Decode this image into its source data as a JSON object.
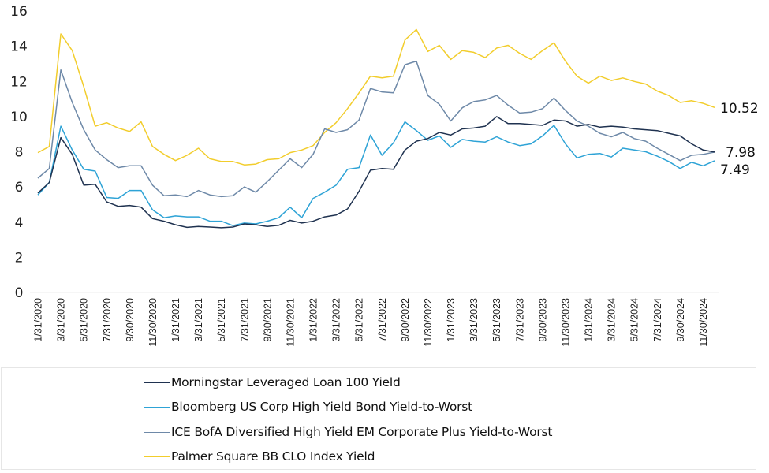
{
  "chart_data": {
    "type": "line",
    "title": "",
    "xlabel": "",
    "ylabel": "",
    "ylim": [
      0,
      16
    ],
    "yticks": [
      0,
      2,
      4,
      6,
      8,
      10,
      12,
      14,
      16
    ],
    "grid": false,
    "legend_position": "bottom",
    "x": [
      "1/31/2020",
      "2/29/2020",
      "3/31/2020",
      "4/30/2020",
      "5/31/2020",
      "6/30/2020",
      "7/31/2020",
      "8/31/2020",
      "9/30/2020",
      "10/31/2020",
      "11/30/2020",
      "12/31/2020",
      "1/31/2021",
      "2/28/2021",
      "3/31/2021",
      "4/30/2021",
      "5/31/2021",
      "6/30/2021",
      "7/31/2021",
      "8/31/2021",
      "9/30/2021",
      "10/31/2021",
      "11/30/2021",
      "12/31/2021",
      "1/31/2022",
      "2/28/2022",
      "3/31/2022",
      "4/30/2022",
      "5/31/2022",
      "6/30/2022",
      "7/31/2022",
      "8/31/2022",
      "9/30/2022",
      "10/31/2022",
      "11/30/2022",
      "12/31/2022",
      "1/31/2023",
      "2/28/2023",
      "3/31/2023",
      "4/30/2023",
      "5/31/2023",
      "6/30/2023",
      "7/31/2023",
      "8/31/2023",
      "9/30/2023",
      "10/31/2023",
      "11/30/2023",
      "12/31/2023",
      "1/31/2024",
      "2/29/2024",
      "3/31/2024",
      "4/30/2024",
      "5/31/2024",
      "6/30/2024",
      "7/31/2024",
      "8/31/2024",
      "9/30/2024",
      "10/31/2024",
      "11/30/2024",
      "12/31/2024"
    ],
    "xtick_labels": [
      "1/31/2020",
      "3/31/2020",
      "5/31/2020",
      "7/31/2020",
      "9/30/2020",
      "11/30/2020",
      "1/31/2021",
      "3/31/2021",
      "5/31/2021",
      "7/31/2021",
      "9/30/2021",
      "11/30/2021",
      "1/31/2022",
      "3/31/2022",
      "5/31/2022",
      "7/31/2022",
      "9/30/2022",
      "11/30/2022",
      "1/31/2023",
      "3/31/2023",
      "5/31/2023",
      "7/31/2023",
      "9/30/2023",
      "11/30/2023",
      "1/31/2024",
      "3/31/2024",
      "5/31/2024",
      "7/31/2024",
      "9/30/2024",
      "11/30/2024"
    ],
    "series": [
      {
        "name": "Morningstar Leveraged Loan 100 Yield",
        "color": "#1f3250",
        "values": [
          5.65,
          6.25,
          8.8,
          7.85,
          6.1,
          6.15,
          5.15,
          4.9,
          4.95,
          4.85,
          4.2,
          4.05,
          3.85,
          3.7,
          3.75,
          3.72,
          3.68,
          3.72,
          3.9,
          3.85,
          3.75,
          3.82,
          4.1,
          3.95,
          4.05,
          4.3,
          4.4,
          4.75,
          5.75,
          6.95,
          7.05,
          7.0,
          8.1,
          8.6,
          8.75,
          9.1,
          8.95,
          9.3,
          9.35,
          9.45,
          10.0,
          9.6,
          9.6,
          9.55,
          9.5,
          9.8,
          9.75,
          9.45,
          9.55,
          9.4,
          9.45,
          9.4,
          9.3,
          9.25,
          9.2,
          9.05,
          8.9,
          8.45,
          8.1,
          7.98
        ]
      },
      {
        "name": "Bloomberg US Corp High Yield Bond Yield-to-Worst",
        "color": "#2ea3d6",
        "values": [
          5.55,
          6.25,
          9.45,
          8.1,
          7.0,
          6.9,
          5.4,
          5.35,
          5.8,
          5.8,
          4.7,
          4.25,
          4.35,
          4.3,
          4.3,
          4.05,
          4.05,
          3.8,
          3.95,
          3.9,
          4.05,
          4.25,
          4.85,
          4.25,
          5.35,
          5.7,
          6.1,
          7.0,
          7.1,
          8.95,
          7.8,
          8.5,
          9.7,
          9.2,
          8.65,
          8.9,
          8.25,
          8.7,
          8.6,
          8.55,
          8.85,
          8.55,
          8.35,
          8.45,
          8.9,
          9.5,
          8.45,
          7.65,
          7.85,
          7.9,
          7.7,
          8.2,
          8.1,
          8.0,
          7.75,
          7.45,
          7.05,
          7.4,
          7.2,
          7.49
        ]
      },
      {
        "name": "ICE BofA Diversified High Yield EM Corporate Plus Yield-to-Worst",
        "color": "#6e89a8",
        "values": [
          6.5,
          7.05,
          12.65,
          10.8,
          9.25,
          8.1,
          7.55,
          7.1,
          7.2,
          7.2,
          6.1,
          5.5,
          5.55,
          5.45,
          5.8,
          5.55,
          5.45,
          5.5,
          6.0,
          5.7,
          6.3,
          6.95,
          7.6,
          7.1,
          7.85,
          9.3,
          9.1,
          9.25,
          9.8,
          11.6,
          11.4,
          11.35,
          12.95,
          13.15,
          11.2,
          10.7,
          9.75,
          10.5,
          10.85,
          10.95,
          11.2,
          10.65,
          10.2,
          10.25,
          10.45,
          11.05,
          10.35,
          9.75,
          9.45,
          9.05,
          8.85,
          9.1,
          8.75,
          8.6,
          8.2,
          7.85,
          7.5,
          7.8,
          7.85,
          7.98
        ]
      },
      {
        "name": "Palmer Square BB CLO Index Yield",
        "color": "#f2cd2c",
        "values": [
          7.95,
          8.3,
          14.7,
          13.75,
          11.7,
          9.45,
          9.65,
          9.35,
          9.15,
          9.7,
          8.3,
          7.85,
          7.5,
          7.8,
          8.2,
          7.6,
          7.45,
          7.45,
          7.25,
          7.3,
          7.55,
          7.6,
          7.95,
          8.1,
          8.35,
          9.1,
          9.65,
          10.45,
          11.35,
          12.3,
          12.2,
          12.3,
          14.35,
          14.95,
          13.7,
          14.05,
          13.25,
          13.75,
          13.65,
          13.35,
          13.9,
          14.05,
          13.6,
          13.25,
          13.75,
          14.2,
          13.15,
          12.3,
          11.9,
          12.3,
          12.05,
          12.2,
          12.0,
          11.85,
          11.45,
          11.2,
          10.8,
          10.9,
          10.75,
          10.52
        ]
      }
    ],
    "end_labels": [
      "10.52",
      "7.98",
      "7.49"
    ]
  }
}
